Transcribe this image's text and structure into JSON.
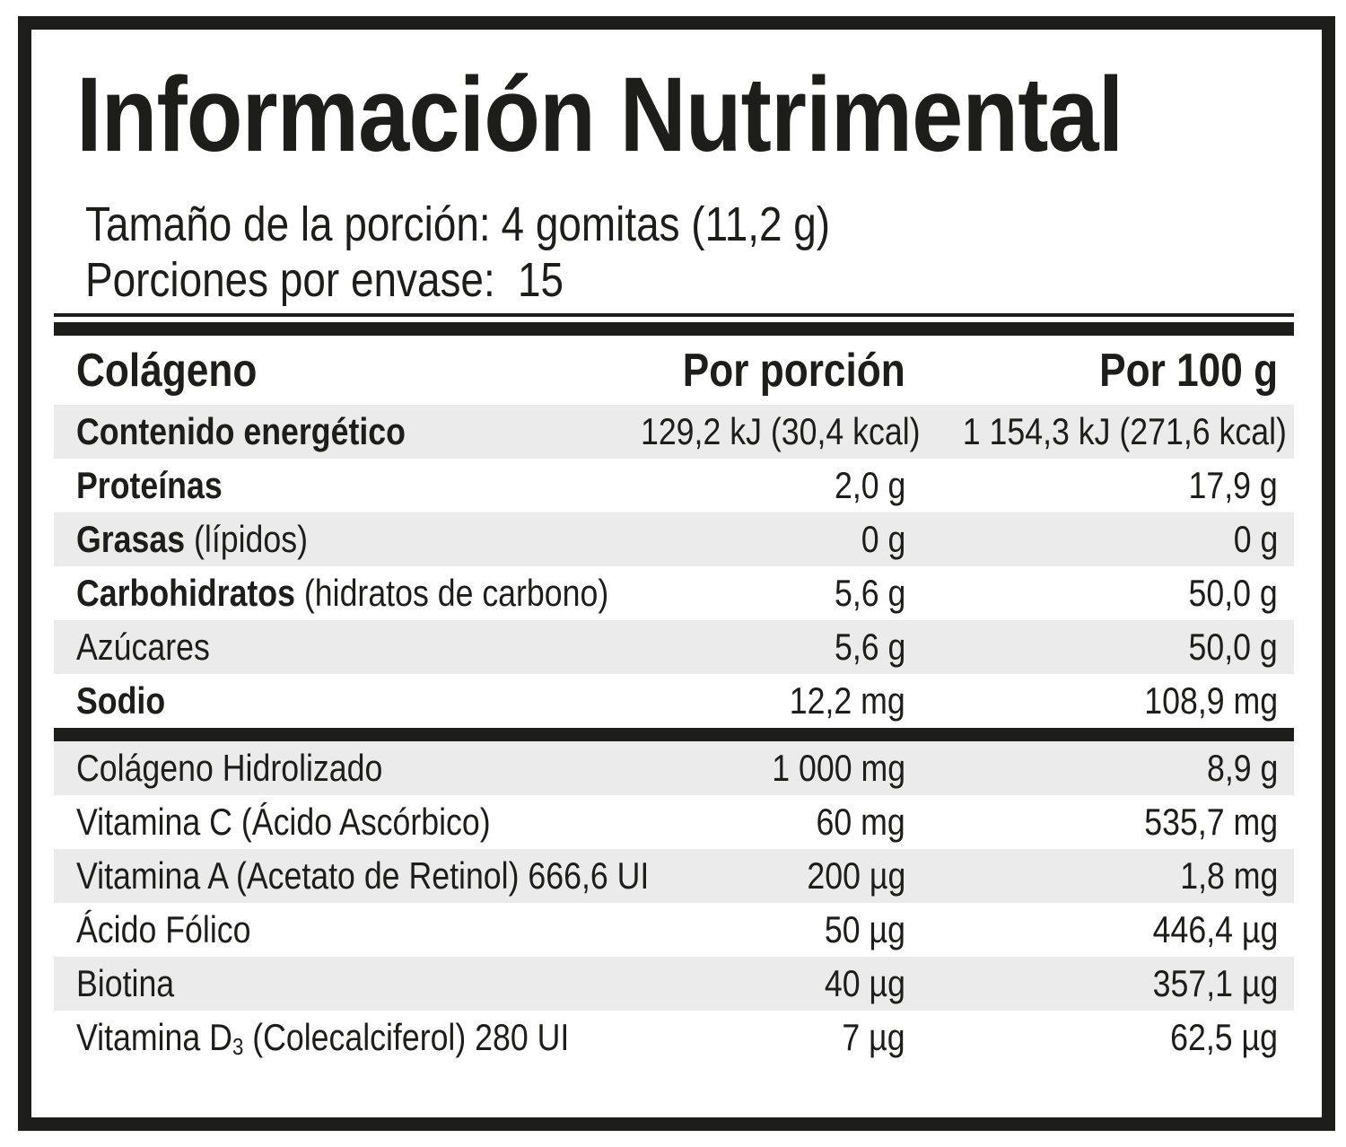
{
  "label": {
    "title": "Información Nutrimental",
    "serving_size_label": "Tamaño de la porción:",
    "serving_size_value": "4 gomitas (11,2 g)",
    "servings_per_container_label": "Porciones por envase:",
    "servings_per_container_value": "15"
  },
  "table": {
    "header": {
      "name_col": "Colágeno",
      "per_portion_col": "Por porción",
      "per_100g_col": "Por 100 g"
    },
    "nutrient_rows": [
      {
        "bold": "Contenido energético",
        "rest": "",
        "sub": "",
        "rest2": "",
        "portion": "129,2 kJ (30,4 kcal)",
        "per100": "1 154,3 kJ (271,6 kcal)"
      },
      {
        "bold": "Proteínas",
        "rest": "",
        "sub": "",
        "rest2": "",
        "portion": "2,0 g",
        "per100": "17,9 g"
      },
      {
        "bold": "Grasas",
        "rest": " (lípidos)",
        "sub": "",
        "rest2": "",
        "portion": "0 g",
        "per100": "0 g"
      },
      {
        "bold": "Carbohidratos",
        "rest": " (hidratos de carbono)",
        "sub": "",
        "rest2": "",
        "portion": "5,6 g",
        "per100": "50,0 g"
      },
      {
        "bold": "",
        "rest": "Azúcares",
        "sub": "",
        "rest2": "",
        "portion": "5,6 g",
        "per100": "50,0 g"
      },
      {
        "bold": "Sodio",
        "rest": "",
        "sub": "",
        "rest2": "",
        "portion": "12,2 mg",
        "per100": "108,9 mg"
      }
    ],
    "supplement_rows": [
      {
        "bold": "",
        "rest": "Colágeno Hidrolizado",
        "sub": "",
        "rest2": "",
        "portion": "1 000 mg",
        "per100": "8,9 g"
      },
      {
        "bold": "",
        "rest": "Vitamina C (Ácido Ascórbico)",
        "sub": "",
        "rest2": "",
        "portion": "60 mg",
        "per100": "535,7 mg"
      },
      {
        "bold": "",
        "rest": "Vitamina A (Acetato de Retinol) 666,6 UI",
        "sub": "",
        "rest2": "",
        "portion": "200 µg",
        "per100": "1,8 mg"
      },
      {
        "bold": "",
        "rest": "Ácido Fólico",
        "sub": "",
        "rest2": "",
        "portion": "50 µg",
        "per100": "446,4 µg"
      },
      {
        "bold": "",
        "rest": "Biotina",
        "sub": "",
        "rest2": "",
        "portion": "40 µg",
        "per100": "357,1 µg"
      },
      {
        "bold": "",
        "rest": "Vitamina D",
        "sub": "3",
        "rest2": " (Colecalciferol) 280 UI",
        "portion": "7 µg",
        "per100": "62,5 µg"
      }
    ]
  },
  "colors": {
    "ink": "#1d1d1b",
    "stripe": "#ebebeb",
    "background": "#ffffff"
  }
}
